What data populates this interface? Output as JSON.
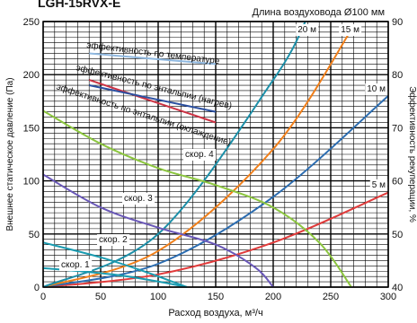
{
  "page_title": "LGH-15RVX-E",
  "chart_data": {
    "type": "line",
    "title": "LGH-15RVX-E",
    "subtitle": "Длина воздуховода Ø100 мм",
    "xlabel": "Расход воздуха, м³/ч",
    "ylabel": "Внешнее статическое давление (Па)",
    "ylabel_right": "Эффективность рекуперации, %",
    "xlim": [
      0,
      300
    ],
    "ylim": [
      0,
      250
    ],
    "ylim_right": [
      40,
      90
    ],
    "x_ticks": [
      "0",
      "50",
      "100",
      "150",
      "200",
      "250",
      "300"
    ],
    "y_ticks": [
      "0",
      "50",
      "100",
      "150",
      "200",
      "250"
    ],
    "y_ticks_right": [
      "40",
      "50",
      "60",
      "70",
      "80",
      "90"
    ],
    "grid": true,
    "fan_speed_series": [
      {
        "name": "скор. 1",
        "color": "#1a9bb0",
        "x": [
          0,
          60,
          96,
          125
        ],
        "y": [
          18,
          12,
          6,
          0
        ]
      },
      {
        "name": "скор. 2",
        "color": "#1a9bb0",
        "x": [
          0,
          50,
          90,
          125
        ],
        "y": [
          42,
          28,
          14,
          0
        ]
      },
      {
        "name": "скор. 3",
        "color": "#6a58b8",
        "x": [
          0,
          50,
          100,
          150,
          185,
          200
        ],
        "y": [
          106,
          75,
          56,
          40,
          18,
          0
        ]
      },
      {
        "name": "скор. 4",
        "color": "#8cc63f",
        "x": [
          0,
          50,
          100,
          150,
          200,
          240,
          268
        ],
        "y": [
          166,
          135,
          112,
          96,
          75,
          42,
          0
        ]
      }
    ],
    "duct_series": [
      {
        "name": "5 м",
        "color": "#e03b3b",
        "x": [
          0,
          100,
          200,
          300
        ],
        "y": [
          0,
          12,
          42,
          89
        ]
      },
      {
        "name": "10 м",
        "color": "#2b6cb0",
        "x": [
          0,
          100,
          200,
          300
        ],
        "y": [
          0,
          22,
          85,
          180
        ]
      },
      {
        "name": "15 м",
        "color": "#f07f1a",
        "x": [
          0,
          100,
          200,
          270
        ],
        "y": [
          0,
          34,
          130,
          246
        ]
      },
      {
        "name": "20 м",
        "color": "#1c8fa8",
        "x": [
          0,
          100,
          200,
          228
        ],
        "y": [
          0,
          50,
          195,
          252
        ]
      }
    ],
    "efficiency_series": [
      {
        "name": "эффективность по температуре",
        "color": "#8fb8e0",
        "x": [
          40,
          150
        ],
        "y": [
          84,
          82
        ]
      },
      {
        "name": "эффективность по энтальпии (нагрев)",
        "color": "#cc3344",
        "x": [
          40,
          150
        ],
        "y": [
          79,
          71
        ]
      },
      {
        "name": "эффективность по энтальпии (охлаждение)",
        "color": "#2a4fa0",
        "x": [
          40,
          150
        ],
        "y": [
          78,
          73
        ]
      }
    ]
  }
}
